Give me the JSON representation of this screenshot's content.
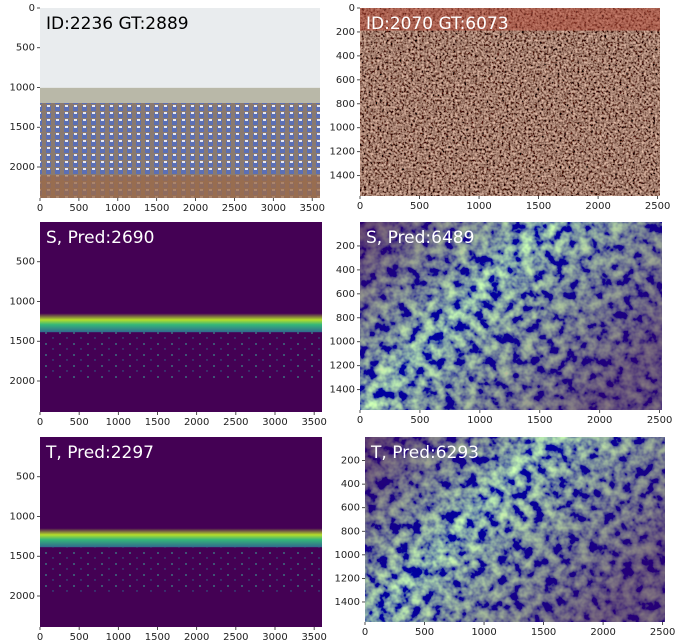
{
  "panels": [
    {
      "label": "ID:2236 GT:2889",
      "xlim": [
        0,
        3600
      ],
      "ylim": [
        0,
        2390
      ],
      "xticks": [
        0,
        500,
        1000,
        1500,
        2000,
        2500,
        3000,
        3500
      ],
      "yticks": [
        0,
        500,
        1000,
        1500,
        2000
      ]
    },
    {
      "label": "ID:2070 GT:6073",
      "xlim": [
        0,
        2520
      ],
      "ylim": [
        0,
        1570
      ],
      "xticks": [
        0,
        500,
        1000,
        1500,
        2000,
        2500
      ],
      "yticks": [
        0,
        200,
        400,
        600,
        800,
        1000,
        1200,
        1400
      ]
    },
    {
      "label": "S, Pred:2690",
      "xlim": [
        0,
        3600
      ],
      "ylim": [
        0,
        2390
      ],
      "xticks": [
        0,
        500,
        1000,
        1500,
        2000,
        2500,
        3000,
        3500
      ],
      "yticks": [
        500,
        1000,
        1500,
        2000
      ]
    },
    {
      "label": "S, Pred:6489",
      "xlim": [
        0,
        2520
      ],
      "ylim": [
        0,
        1570
      ],
      "xticks": [
        0,
        500,
        1000,
        1500,
        2000,
        2500
      ],
      "yticks": [
        200,
        400,
        600,
        800,
        1000,
        1200,
        1400
      ]
    },
    {
      "label": "T, Pred:2297",
      "xlim": [
        0,
        3600
      ],
      "ylim": [
        0,
        2390
      ],
      "xticks": [
        0,
        500,
        1000,
        1500,
        2000,
        2500,
        3000,
        3500
      ],
      "yticks": [
        500,
        1000,
        1500,
        2000
      ]
    },
    {
      "label": "T, Pred:6293",
      "xlim": [
        0,
        2520
      ],
      "ylim": [
        0,
        1570
      ],
      "xticks": [
        0,
        500,
        1000,
        1500,
        2000,
        2500
      ],
      "yticks": [
        200,
        400,
        600,
        800,
        1000,
        1200,
        1400
      ]
    }
  ]
}
